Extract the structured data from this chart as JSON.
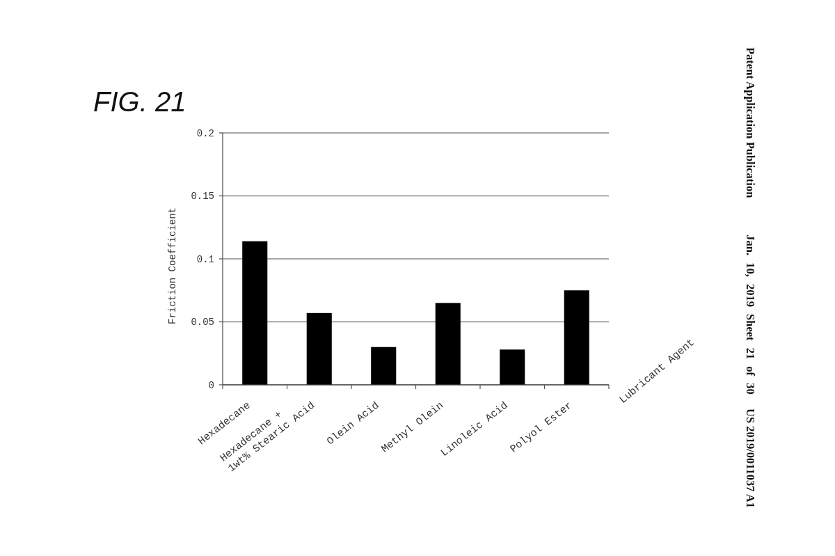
{
  "chart_data": {
    "type": "bar",
    "title": "FIG. 21",
    "xlabel": "Lubricant Agent",
    "ylabel": "Friction Coefficient",
    "categories": [
      "Hexadecane",
      "Hexadecane +\n1wt% Stearic Acid",
      "Olein Acid",
      "Methyl Olein",
      "Linoleic Acid",
      "Polyol Ester"
    ],
    "values": [
      0.114,
      0.057,
      0.03,
      0.065,
      0.028,
      0.075
    ],
    "color": "#000000",
    "ylim": [
      0,
      0.2
    ],
    "yticks": [
      0,
      0.05,
      0.1,
      0.15,
      0.2
    ],
    "grid": "y",
    "annotations": [
      "Patent Application Publication",
      "Jan. 10, 2019 Sheet 21 of 30",
      "US 2019/0011037 A1"
    ]
  }
}
